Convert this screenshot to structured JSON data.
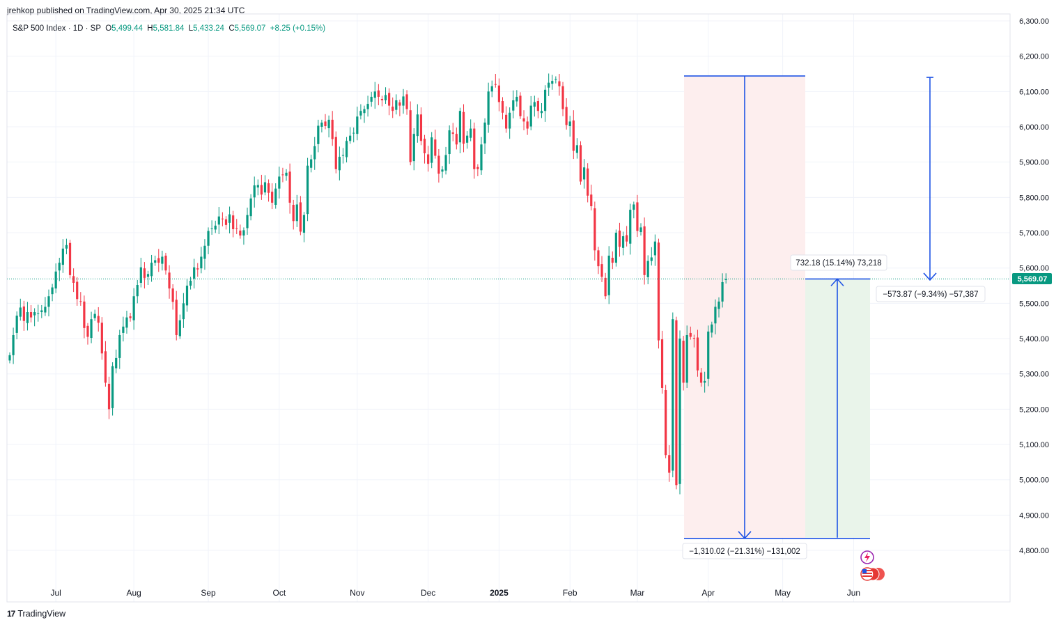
{
  "publisher": {
    "user": "jrehkop",
    "mid": "published on",
    "site": "TradingView.com",
    "timestamp": "Apr 30, 2025 21:34 UTC"
  },
  "legend": {
    "symbol": "S&P 500 Index · 1D · SP",
    "o_label": "O",
    "open": "5,499.44",
    "h_label": "H",
    "high": "5,581.84",
    "l_label": "L",
    "low": "5,433.24",
    "c_label": "C",
    "close": "5,569.07",
    "change": "+8.25 (+0.15%)"
  },
  "footer": {
    "logo": "17",
    "brand": "TradingView"
  },
  "colors": {
    "up": "#089981",
    "down": "#f23645",
    "drawing": "#1e53e5",
    "short_zone": "#fdeeee",
    "long_zone": "#e9f4ea",
    "grid": "#f0f3fa",
    "price_line": "#089981"
  },
  "chart_data": {
    "type": "candlestick",
    "title": "S&P 500 Index · 1D · SP",
    "ylim": [
      4740,
      6300
    ],
    "y_ticks": [
      "6,300.00",
      "6,200.00",
      "6,100.00",
      "6,000.00",
      "5,900.00",
      "5,800.00",
      "5,700.00",
      "5,600.00",
      "5,500.00",
      "5,400.00",
      "5,300.00",
      "5,200.00",
      "5,100.00",
      "5,000.00",
      "4,900.00",
      "4,800.00"
    ],
    "y_tick_values": [
      6300,
      6200,
      6100,
      6000,
      5900,
      5800,
      5700,
      5600,
      5500,
      5400,
      5300,
      5200,
      5100,
      5000,
      4900,
      4800
    ],
    "x_ticks": [
      {
        "label": "Jul",
        "bar": 13,
        "bold": false
      },
      {
        "label": "Aug",
        "bar": 35,
        "bold": false
      },
      {
        "label": "Sep",
        "bar": 56,
        "bold": false
      },
      {
        "label": "Oct",
        "bar": 76,
        "bold": false
      },
      {
        "label": "Nov",
        "bar": 98,
        "bold": false
      },
      {
        "label": "Dec",
        "bar": 118,
        "bold": false
      },
      {
        "label": "2025",
        "bar": 138,
        "bold": true
      },
      {
        "label": "Feb",
        "bar": 158,
        "bold": false
      },
      {
        "label": "Mar",
        "bar": 177,
        "bold": false
      },
      {
        "label": "Apr",
        "bar": 197,
        "bold": false
      },
      {
        "label": "May",
        "bar": 218,
        "bold": false
      },
      {
        "label": "Jun",
        "bar": 238,
        "bold": false
      }
    ],
    "last_price_label": "5,569.07",
    "last_price": 5569.07,
    "closes": [
      5353,
      5410,
      5465,
      5488,
      5450,
      5475,
      5460,
      5475,
      5472,
      5480,
      5490,
      5520,
      5545,
      5590,
      5615,
      5655,
      5665,
      5580,
      5558,
      5512,
      5505,
      5430,
      5405,
      5455,
      5470,
      5445,
      5358,
      5275,
      5200,
      5322,
      5345,
      5410,
      5434,
      5460,
      5458,
      5520,
      5552,
      5602,
      5572,
      5583,
      5615,
      5622,
      5615,
      5632,
      5593,
      5542,
      5504,
      5410,
      5452,
      5500,
      5550,
      5564,
      5602,
      5596,
      5632,
      5663,
      5705,
      5712,
      5720,
      5746,
      5738,
      5722,
      5752,
      5710,
      5712,
      5692,
      5707,
      5750,
      5797,
      5834,
      5835,
      5808,
      5843,
      5813,
      5785,
      5825,
      5859,
      5864,
      5870,
      5785,
      5733,
      5780,
      5703,
      5750,
      5890,
      5908,
      5945,
      6003,
      6012,
      6002,
      6020,
      5965,
      5880,
      5915,
      5920,
      5960,
      5975,
      5983,
      6029,
      6045,
      6050,
      6065,
      6085,
      6100,
      6085,
      6075,
      6090,
      6060,
      6045,
      6075,
      6060,
      6086,
      6050,
      5900,
      5980,
      6035,
      5960,
      5925,
      5895,
      5970,
      5918,
      5867,
      5879,
      5920,
      5990,
      5980,
      5950,
      6045,
      5952,
      5975,
      5995,
      5880,
      5880,
      5950,
      6012,
      6100,
      6115,
      6120,
      6070,
      6040,
      5995,
      6040,
      6075,
      6085,
      6030,
      6015,
      5995,
      6060,
      6070,
      6045,
      6045,
      6105,
      6125,
      6130,
      6135,
      6115,
      6050,
      6005,
      6015,
      5932,
      5948,
      5845,
      5885,
      5805,
      5775,
      5650,
      5605,
      5575,
      5520,
      5635,
      5615,
      5700,
      5660,
      5690,
      5675,
      5765,
      5780,
      5705,
      5715,
      5580,
      5620,
      5630,
      5675,
      5395,
      5260,
      5070,
      5020,
      5455,
      4985,
      5400,
      5275,
      5410,
      5405,
      5400,
      5310,
      5275,
      5280,
      5420,
      5440,
      5490,
      5505,
      5560,
      5569
    ],
    "annotations": {
      "short_label": "−1,310.02 (−21.31%) −131,002",
      "long_label": "732.18 (15.14%) 73,218",
      "projection_label": "−573.87 (−9.34%) −57,387",
      "short_top": 6144,
      "short_bottom": 4834,
      "long_top": 5569,
      "long_bottom": 4836,
      "projection_top": 6140,
      "projection_bottom": 5566
    }
  }
}
